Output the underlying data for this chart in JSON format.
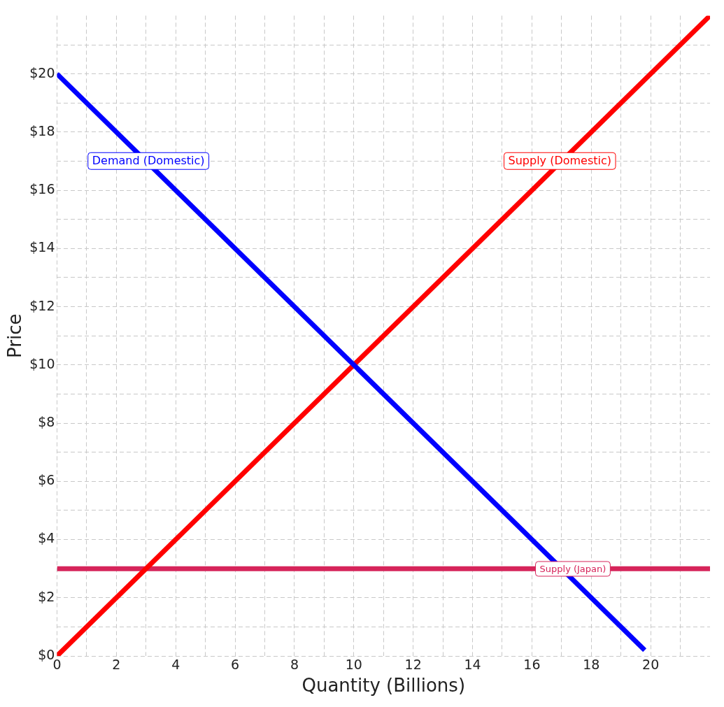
{
  "chart_data": {
    "type": "line",
    "xlabel": "Quantity (Billions)",
    "ylabel": "Price",
    "xlim": [
      0,
      22
    ],
    "ylim": [
      0,
      22
    ],
    "xticks": [
      0,
      {
        "value": 1,
        "label": null
      },
      2,
      {
        "value": 3,
        "label": null
      },
      4,
      {
        "value": 5,
        "label": null
      },
      6,
      {
        "value": 7,
        "label": null
      },
      8,
      {
        "value": 9,
        "label": null
      },
      10,
      {
        "value": 11,
        "label": null
      },
      12,
      {
        "value": 13,
        "label": null
      },
      14,
      {
        "value": 15,
        "label": null
      },
      16,
      {
        "value": 17,
        "label": null
      },
      18,
      {
        "value": 19,
        "label": null
      },
      20,
      {
        "value": 21,
        "label": null
      }
    ],
    "yticks": [
      {
        "value": 0,
        "label": "$0"
      },
      {
        "value": 1,
        "label": null
      },
      {
        "value": 2,
        "label": "$2"
      },
      {
        "value": 3,
        "label": null
      },
      {
        "value": 4,
        "label": "$4"
      },
      {
        "value": 5,
        "label": null
      },
      {
        "value": 6,
        "label": "$6"
      },
      {
        "value": 7,
        "label": null
      },
      {
        "value": 8,
        "label": "$8"
      },
      {
        "value": 9,
        "label": null
      },
      {
        "value": 10,
        "label": "$10"
      },
      {
        "value": 11,
        "label": null
      },
      {
        "value": 12,
        "label": "$12"
      },
      {
        "value": 13,
        "label": null
      },
      {
        "value": 14,
        "label": "$14"
      },
      {
        "value": 15,
        "label": null
      },
      {
        "value": 16,
        "label": "$16"
      },
      {
        "value": 17,
        "label": null
      },
      {
        "value": 18,
        "label": "$18"
      },
      {
        "value": 19,
        "label": null
      },
      {
        "value": 20,
        "label": "$20"
      },
      {
        "value": 21,
        "label": null
      }
    ],
    "grid": true,
    "legend": false,
    "marker": "none",
    "line_style": "solid",
    "series": [
      {
        "name": "Demand (Domestic)",
        "color": "#0000ff",
        "x": [
          0,
          19.8
        ],
        "values": [
          20,
          0.2
        ]
      },
      {
        "name": "Supply (Domestic)",
        "color": "#ff0000",
        "x": [
          0,
          22
        ],
        "values": [
          0,
          22
        ]
      },
      {
        "name": "Supply (Japan)",
        "color": "#d6245a",
        "x": [
          0,
          22
        ],
        "values": [
          3,
          3
        ]
      }
    ]
  }
}
